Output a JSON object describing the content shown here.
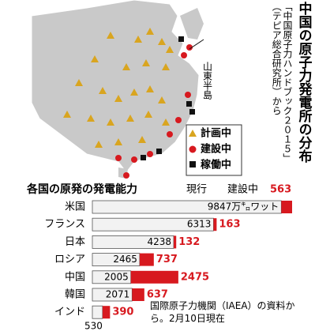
{
  "map": {
    "title": "中国の原子力発電所の分布",
    "source": "「中国原子力ハンドブック２０１５」（テピア総合研究所）から",
    "region_label": "山東半島",
    "legend": [
      "計画中",
      "建設中",
      "稼働中"
    ]
  },
  "chart_data": {
    "type": "bar",
    "orientation": "horizontal",
    "stacked": true,
    "title": "各国の原発の発電能力",
    "categories": [
      "米国",
      "フランス",
      "日本",
      "ロシア",
      "中国",
      "韓国",
      "インド"
    ],
    "series": [
      {
        "name": "現行",
        "color": "#f2f2f2",
        "values": [
          9847,
          6313,
          4238,
          2465,
          2005,
          2071,
          530
        ],
        "value_labels": [
          "9847万㌔ワット",
          "6313",
          "4238",
          "2465",
          "2005",
          "2071",
          "530"
        ]
      },
      {
        "name": "建設中",
        "color": "#d7191f",
        "values": [
          563,
          163,
          132,
          737,
          2475,
          637,
          390
        ]
      }
    ],
    "note": "国際原子力機関（IAEA）の資料から。2月10日現在"
  }
}
